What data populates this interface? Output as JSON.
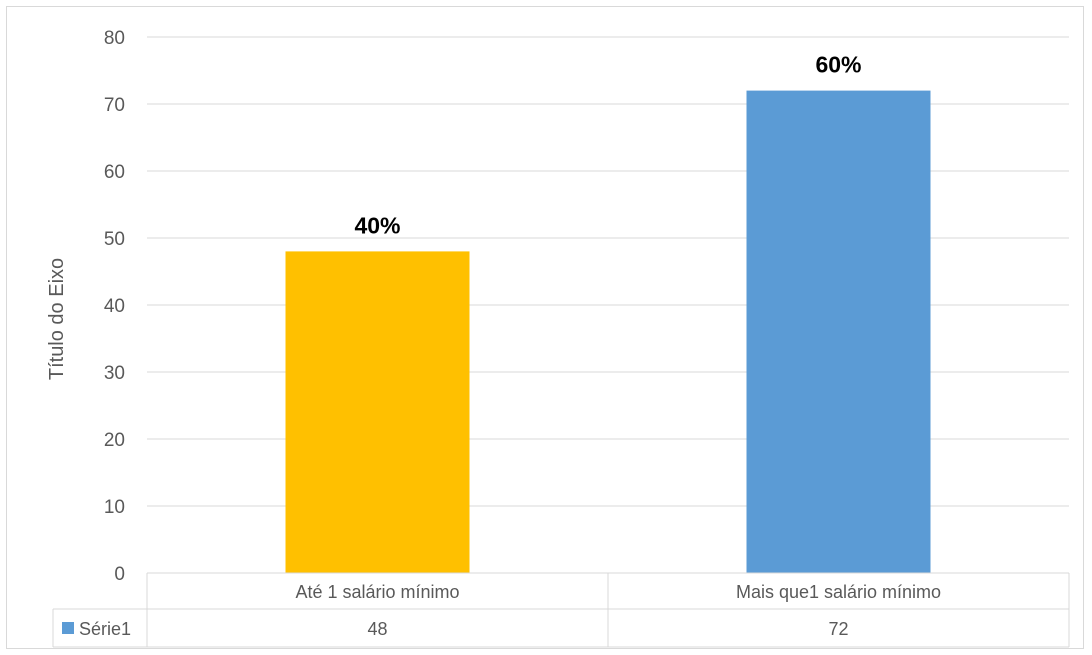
{
  "chart_data": {
    "type": "bar",
    "categories": [
      "Até 1 salário mínimo",
      "Mais que1 salário mínimo"
    ],
    "series": [
      {
        "name": "Série1",
        "values": [
          48,
          72
        ],
        "colors": [
          "#ffc000",
          "#5b9bd5"
        ],
        "legend_color": "#5b9bd5",
        "data_labels": [
          "40%",
          "60%"
        ]
      }
    ],
    "ylabel": "Título do Eixo",
    "ylim": [
      0,
      80
    ],
    "yticks": [
      "0",
      "10",
      "20",
      "30",
      "40",
      "50",
      "60",
      "70",
      "80"
    ],
    "data_table": {
      "values": [
        "48",
        "72"
      ]
    },
    "grid": true,
    "legend_placement": "data-table"
  }
}
